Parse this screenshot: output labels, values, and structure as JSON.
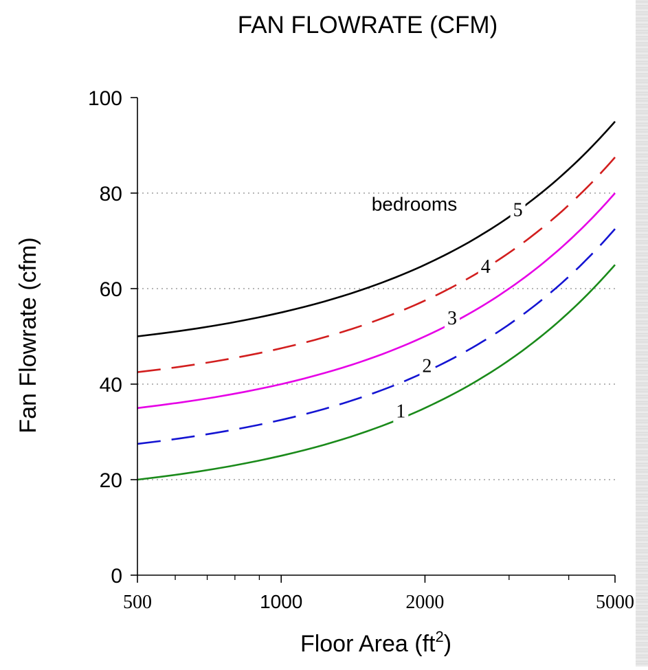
{
  "chart_data": {
    "type": "line",
    "title": "FAN FLOWRATE (CFM)",
    "xlabel": "Floor Area (ft",
    "xlabel_superscript": "2",
    "xlabel_close": ")",
    "ylabel": "Fan Flowrate (cfm)",
    "x_scale": "log",
    "xlim": [
      500,
      5000
    ],
    "ylim": [
      0,
      100
    ],
    "x_ticks_labeled": [
      {
        "value": 500,
        "label": "500"
      },
      {
        "value": 1000,
        "label": "1000"
      },
      {
        "value": 2000,
        "label": "2000"
      },
      {
        "value": 5000,
        "label": "5000"
      }
    ],
    "x_minor_ticks": [
      600,
      700,
      800,
      900,
      3000,
      4000
    ],
    "y_ticks": [
      {
        "value": 0,
        "label": "0"
      },
      {
        "value": 20,
        "label": "20"
      },
      {
        "value": 40,
        "label": "40"
      },
      {
        "value": 60,
        "label": "60"
      },
      {
        "value": 80,
        "label": "80"
      },
      {
        "value": 100,
        "label": "100"
      }
    ],
    "grid": {
      "horizontal_dotted_at": [
        20,
        40,
        60,
        80
      ]
    },
    "annotation": {
      "text": "bedrooms",
      "x": 1900,
      "y": 76.3
    },
    "x": [
      500,
      1000,
      1500,
      2000,
      2500,
      3000,
      3500,
      4000,
      4500,
      5000
    ],
    "series": [
      {
        "name": "1",
        "color": "#1a8a1a",
        "dash": "solid",
        "values": [
          20.0,
          25.0,
          30.0,
          35.0,
          40.0,
          45.0,
          50.0,
          55.0,
          60.0,
          65.0
        ],
        "label_at": {
          "x": 1780,
          "y": 33.0
        }
      },
      {
        "name": "2",
        "color": "#1414d2",
        "dash": "dashed",
        "values": [
          27.5,
          32.5,
          37.5,
          42.5,
          47.5,
          52.5,
          57.5,
          62.5,
          67.5,
          72.5
        ],
        "label_at": {
          "x": 2020,
          "y": 42.5
        }
      },
      {
        "name": "3",
        "color": "#e600e6",
        "dash": "solid",
        "values": [
          35.0,
          40.0,
          45.0,
          50.0,
          55.0,
          60.0,
          65.0,
          70.0,
          75.0,
          80.0
        ],
        "label_at": {
          "x": 2280,
          "y": 52.5
        }
      },
      {
        "name": "4",
        "color": "#d21e1e",
        "dash": "dashed",
        "values": [
          42.5,
          47.5,
          52.5,
          57.5,
          62.5,
          67.5,
          72.5,
          77.5,
          82.5,
          87.5
        ],
        "label_at": {
          "x": 2680,
          "y": 63.3
        }
      },
      {
        "name": "5",
        "color": "#000000",
        "dash": "solid",
        "values": [
          50.0,
          55.0,
          60.0,
          65.0,
          70.0,
          75.0,
          80.0,
          85.0,
          90.0,
          95.0
        ],
        "label_at": {
          "x": 3130,
          "y": 75.2
        }
      }
    ]
  }
}
